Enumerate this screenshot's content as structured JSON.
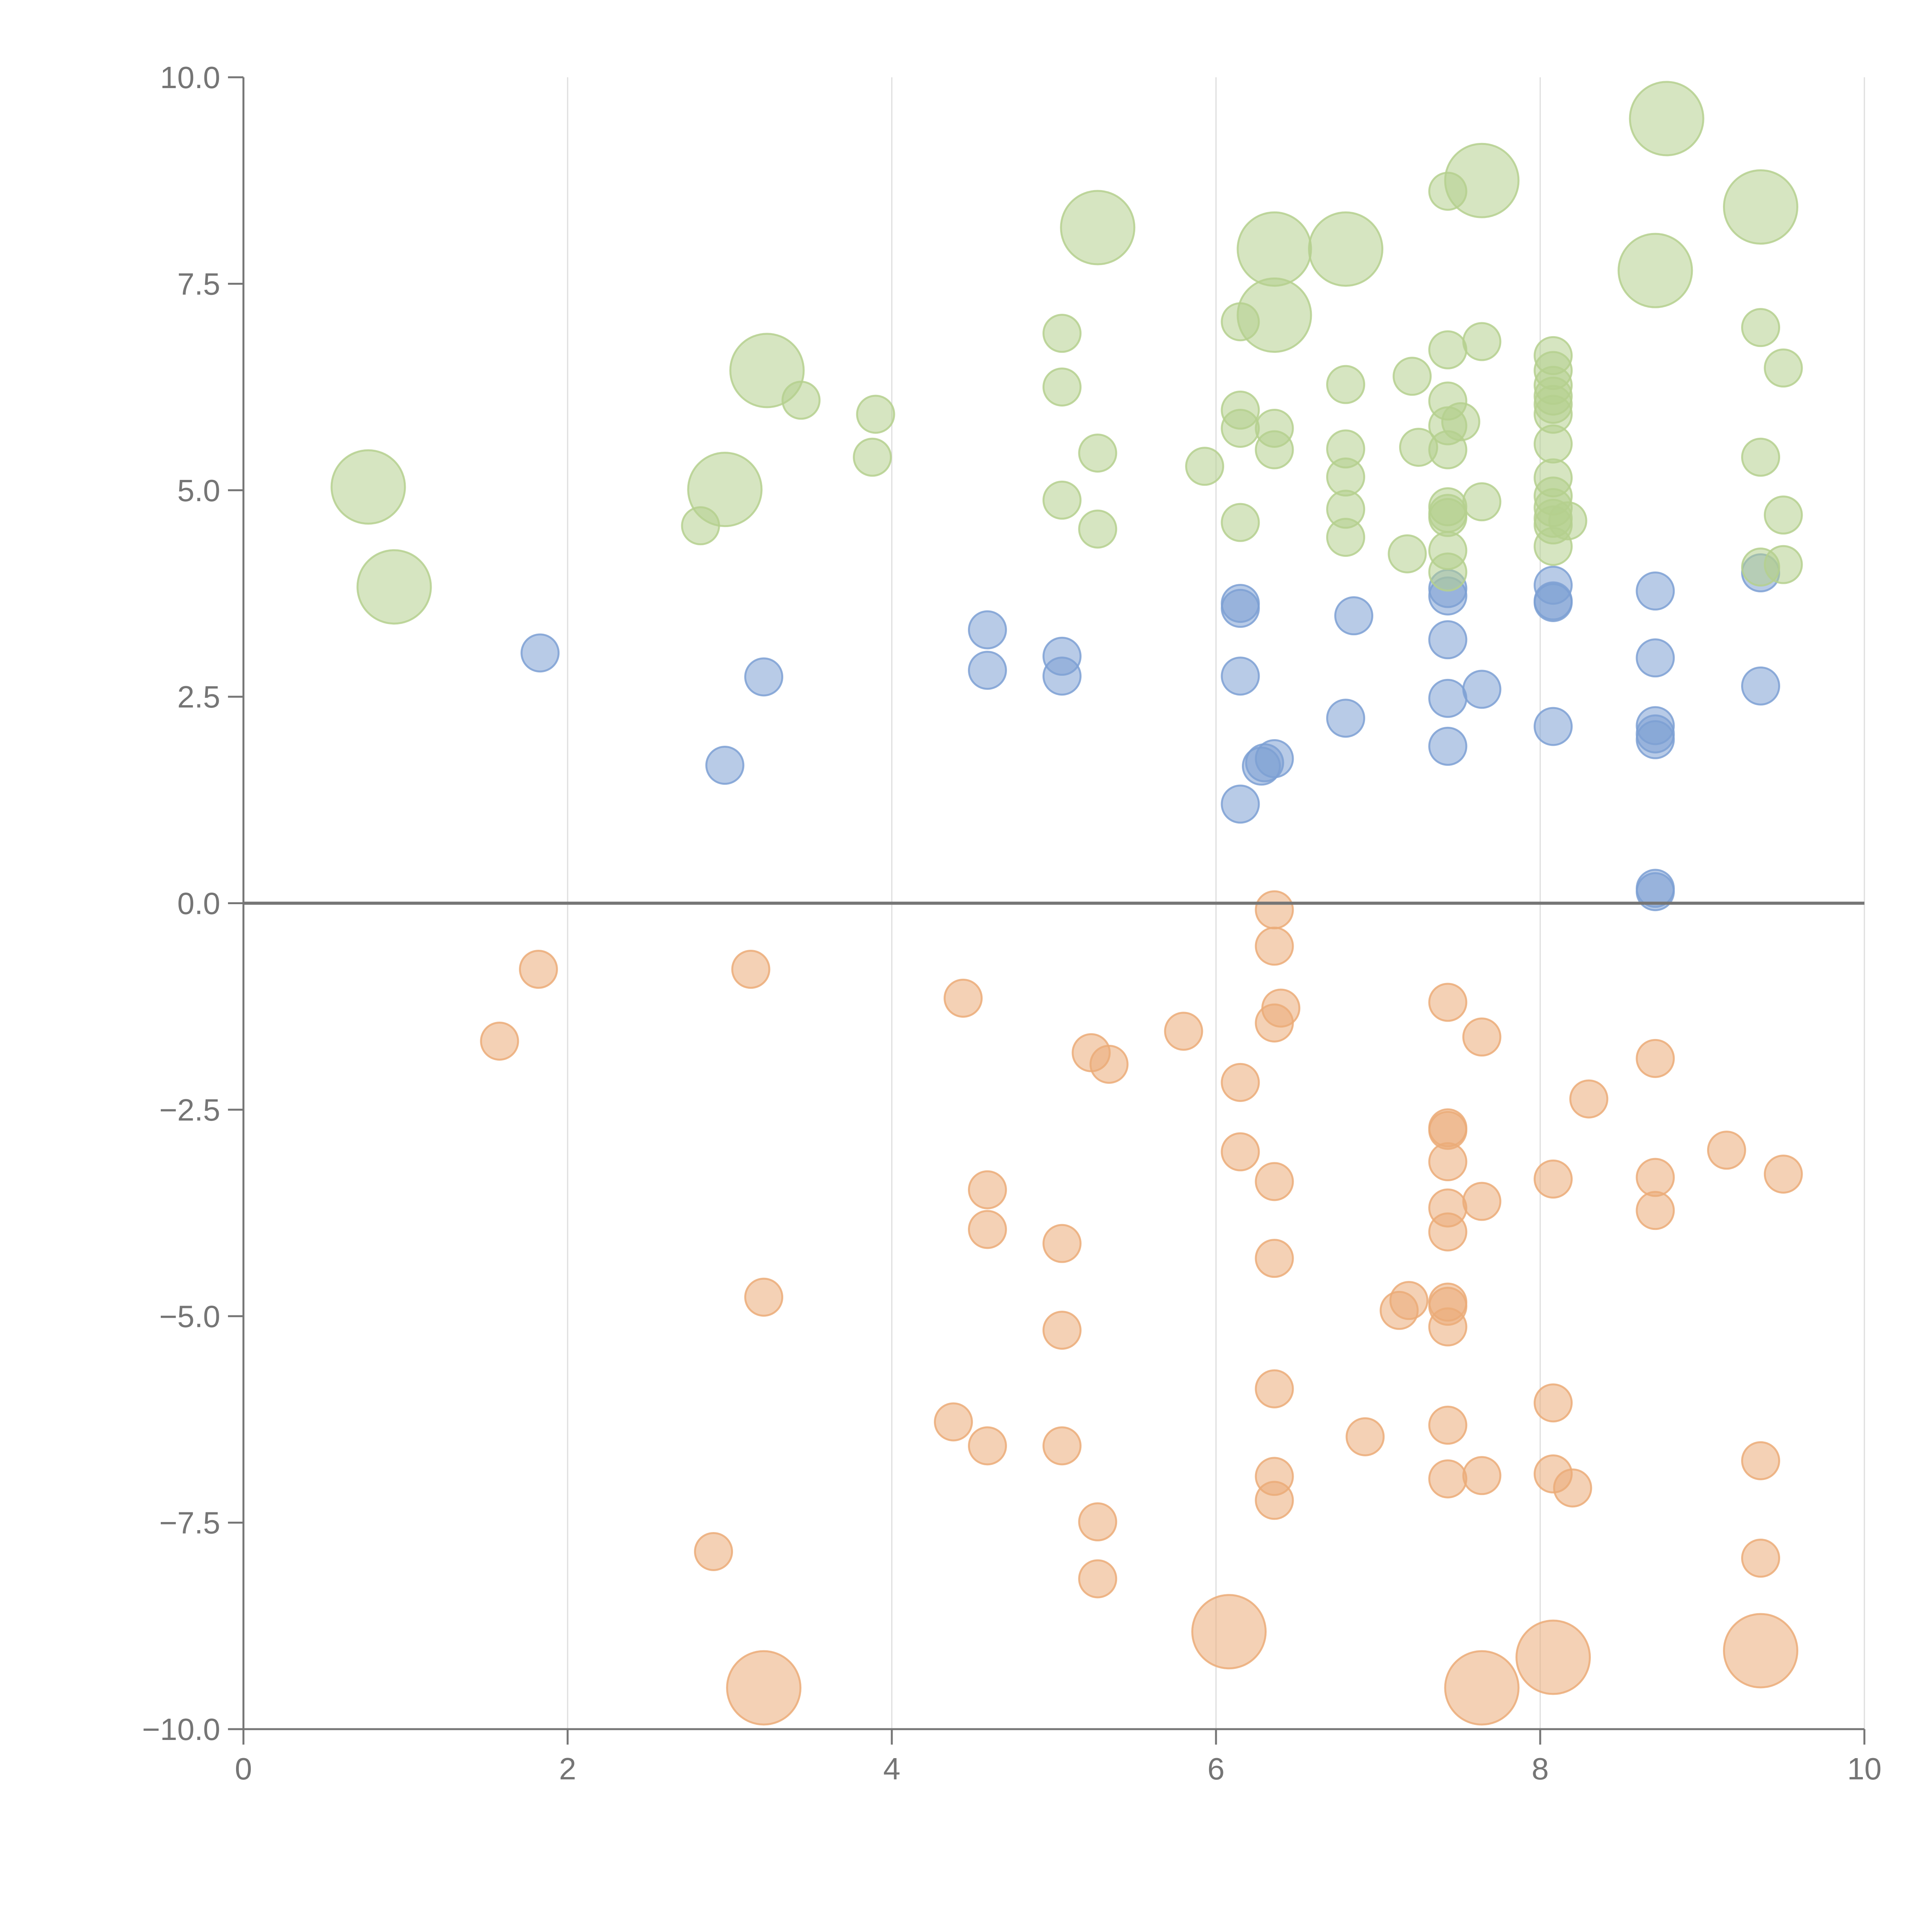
{
  "chart_data": {
    "type": "scatter",
    "title": "",
    "xlabel": "",
    "ylabel": "",
    "xlim": [
      0,
      10
    ],
    "ylim": [
      -10,
      10
    ],
    "x_ticks": [
      "0",
      "2",
      "4",
      "6",
      "8",
      "10"
    ],
    "y_ticks": [
      "−10.0",
      "−7.5",
      "−5.0",
      "−2.5",
      "0.0",
      "2.5",
      "5.0",
      "7.5",
      "10.0"
    ],
    "x_tick_values": [
      0,
      2,
      4,
      6,
      8,
      10
    ],
    "y_tick_values": [
      -10,
      -7.5,
      -5,
      -2.5,
      0,
      2.5,
      5,
      7.5,
      10
    ],
    "grid": "vertical",
    "zero_line": true,
    "colors": {
      "blue": "#7da0d3",
      "green": "#b5d08e",
      "orange": "#ebab78",
      "axis": "#757575",
      "grid": "#dddddd"
    },
    "series": [
      {
        "color_key": "blue",
        "points": [
          {
            "x": 1.83,
            "y": 3.03,
            "size": 1
          },
          {
            "x": 2.97,
            "y": 1.67,
            "size": 1
          },
          {
            "x": 3.21,
            "y": 2.74,
            "size": 1
          },
          {
            "x": 4.59,
            "y": 3.31,
            "size": 1
          },
          {
            "x": 4.59,
            "y": 2.82,
            "size": 1
          },
          {
            "x": 5.05,
            "y": 2.99,
            "size": 1
          },
          {
            "x": 5.05,
            "y": 2.75,
            "size": 1
          },
          {
            "x": 6.15,
            "y": 3.63,
            "size": 1
          },
          {
            "x": 6.15,
            "y": 3.57,
            "size": 1
          },
          {
            "x": 6.15,
            "y": 2.75,
            "size": 1
          },
          {
            "x": 6.15,
            "y": 1.2,
            "size": 1
          },
          {
            "x": 6.28,
            "y": 1.66,
            "size": 1
          },
          {
            "x": 6.3,
            "y": 1.7,
            "size": 1
          },
          {
            "x": 6.36,
            "y": 1.75,
            "size": 1
          },
          {
            "x": 6.8,
            "y": 2.24,
            "size": 1
          },
          {
            "x": 6.85,
            "y": 3.48,
            "size": 1
          },
          {
            "x": 7.43,
            "y": 3.81,
            "size": 1
          },
          {
            "x": 7.43,
            "y": 3.72,
            "size": 1
          },
          {
            "x": 7.43,
            "y": 3.19,
            "size": 1
          },
          {
            "x": 7.43,
            "y": 2.48,
            "size": 1
          },
          {
            "x": 7.43,
            "y": 1.9,
            "size": 1
          },
          {
            "x": 7.64,
            "y": 2.59,
            "size": 1
          },
          {
            "x": 8.08,
            "y": 3.85,
            "size": 1
          },
          {
            "x": 8.08,
            "y": 3.66,
            "size": 1
          },
          {
            "x": 8.08,
            "y": 3.64,
            "size": 1
          },
          {
            "x": 8.08,
            "y": 2.14,
            "size": 1
          },
          {
            "x": 8.71,
            "y": 3.78,
            "size": 1
          },
          {
            "x": 8.71,
            "y": 2.97,
            "size": 1
          },
          {
            "x": 8.71,
            "y": 2.15,
            "size": 1
          },
          {
            "x": 8.71,
            "y": 2.05,
            "size": 1
          },
          {
            "x": 8.71,
            "y": 1.98,
            "size": 1
          },
          {
            "x": 8.71,
            "y": 0.18,
            "size": 1
          },
          {
            "x": 8.71,
            "y": 0.14,
            "size": 1
          },
          {
            "x": 9.36,
            "y": 2.63,
            "size": 1
          },
          {
            "x": 9.36,
            "y": 4.0,
            "size": 1
          }
        ]
      },
      {
        "color_key": "green",
        "points": [
          {
            "x": 0.77,
            "y": 5.04,
            "size": 2
          },
          {
            "x": 0.93,
            "y": 3.83,
            "size": 2
          },
          {
            "x": 2.82,
            "y": 4.57,
            "size": 1
          },
          {
            "x": 2.97,
            "y": 5.01,
            "size": 2
          },
          {
            "x": 3.23,
            "y": 6.45,
            "size": 2
          },
          {
            "x": 3.44,
            "y": 6.09,
            "size": 1
          },
          {
            "x": 3.88,
            "y": 5.4,
            "size": 1
          },
          {
            "x": 3.9,
            "y": 5.92,
            "size": 1
          },
          {
            "x": 5.05,
            "y": 6.9,
            "size": 1
          },
          {
            "x": 5.05,
            "y": 6.25,
            "size": 1
          },
          {
            "x": 5.05,
            "y": 4.88,
            "size": 1
          },
          {
            "x": 5.27,
            "y": 8.18,
            "size": 2
          },
          {
            "x": 5.27,
            "y": 5.45,
            "size": 1
          },
          {
            "x": 5.27,
            "y": 4.53,
            "size": 1
          },
          {
            "x": 5.93,
            "y": 5.29,
            "size": 1
          },
          {
            "x": 6.15,
            "y": 7.04,
            "size": 1
          },
          {
            "x": 6.15,
            "y": 5.97,
            "size": 1
          },
          {
            "x": 6.15,
            "y": 5.75,
            "size": 1
          },
          {
            "x": 6.15,
            "y": 4.61,
            "size": 1
          },
          {
            "x": 6.36,
            "y": 7.92,
            "size": 2
          },
          {
            "x": 6.36,
            "y": 7.12,
            "size": 2
          },
          {
            "x": 6.36,
            "y": 5.75,
            "size": 1
          },
          {
            "x": 6.36,
            "y": 5.49,
            "size": 1
          },
          {
            "x": 6.8,
            "y": 7.92,
            "size": 2
          },
          {
            "x": 6.8,
            "y": 6.28,
            "size": 1
          },
          {
            "x": 6.8,
            "y": 5.5,
            "size": 1
          },
          {
            "x": 6.8,
            "y": 5.16,
            "size": 1
          },
          {
            "x": 6.8,
            "y": 4.77,
            "size": 1
          },
          {
            "x": 6.8,
            "y": 4.43,
            "size": 1
          },
          {
            "x": 7.21,
            "y": 6.38,
            "size": 1
          },
          {
            "x": 7.25,
            "y": 5.52,
            "size": 1
          },
          {
            "x": 7.18,
            "y": 4.23,
            "size": 1
          },
          {
            "x": 7.43,
            "y": 8.62,
            "size": 1
          },
          {
            "x": 7.43,
            "y": 6.7,
            "size": 1
          },
          {
            "x": 7.43,
            "y": 6.08,
            "size": 1
          },
          {
            "x": 7.43,
            "y": 5.78,
            "size": 1
          },
          {
            "x": 7.43,
            "y": 5.49,
            "size": 1
          },
          {
            "x": 7.43,
            "y": 4.8,
            "size": 1
          },
          {
            "x": 7.43,
            "y": 4.72,
            "size": 1
          },
          {
            "x": 7.43,
            "y": 4.67,
            "size": 1
          },
          {
            "x": 7.43,
            "y": 4.27,
            "size": 1
          },
          {
            "x": 7.43,
            "y": 4.01,
            "size": 1
          },
          {
            "x": 7.51,
            "y": 5.83,
            "size": 1
          },
          {
            "x": 7.64,
            "y": 8.75,
            "size": 2
          },
          {
            "x": 7.64,
            "y": 6.8,
            "size": 1
          },
          {
            "x": 7.64,
            "y": 4.86,
            "size": 1
          },
          {
            "x": 8.08,
            "y": 6.63,
            "size": 1
          },
          {
            "x": 8.08,
            "y": 6.45,
            "size": 1
          },
          {
            "x": 8.08,
            "y": 6.27,
            "size": 1
          },
          {
            "x": 8.08,
            "y": 6.14,
            "size": 1
          },
          {
            "x": 8.08,
            "y": 6.04,
            "size": 1
          },
          {
            "x": 8.08,
            "y": 5.92,
            "size": 1
          },
          {
            "x": 8.08,
            "y": 5.56,
            "size": 1
          },
          {
            "x": 8.08,
            "y": 5.15,
            "size": 1
          },
          {
            "x": 8.08,
            "y": 4.93,
            "size": 1
          },
          {
            "x": 8.08,
            "y": 4.79,
            "size": 1
          },
          {
            "x": 8.08,
            "y": 4.66,
            "size": 1
          },
          {
            "x": 8.08,
            "y": 4.58,
            "size": 1
          },
          {
            "x": 8.08,
            "y": 4.32,
            "size": 1
          },
          {
            "x": 8.17,
            "y": 4.63,
            "size": 1
          },
          {
            "x": 8.71,
            "y": 7.66,
            "size": 2
          },
          {
            "x": 8.78,
            "y": 9.5,
            "size": 2
          },
          {
            "x": 9.36,
            "y": 8.43,
            "size": 2
          },
          {
            "x": 9.36,
            "y": 6.97,
            "size": 1
          },
          {
            "x": 9.36,
            "y": 5.4,
            "size": 1
          },
          {
            "x": 9.36,
            "y": 4.07,
            "size": 1
          },
          {
            "x": 9.5,
            "y": 6.48,
            "size": 1
          },
          {
            "x": 9.5,
            "y": 4.7,
            "size": 1
          },
          {
            "x": 9.5,
            "y": 4.1,
            "size": 1
          }
        ]
      },
      {
        "color_key": "orange",
        "points": [
          {
            "x": 1.58,
            "y": -1.67,
            "size": 1
          },
          {
            "x": 1.82,
            "y": -0.8,
            "size": 1
          },
          {
            "x": 3.13,
            "y": -0.8,
            "size": 1
          },
          {
            "x": 2.9,
            "y": -7.85,
            "size": 1
          },
          {
            "x": 3.21,
            "y": -4.77,
            "size": 1
          },
          {
            "x": 3.21,
            "y": -9.5,
            "size": 2
          },
          {
            "x": 4.44,
            "y": -1.15,
            "size": 1
          },
          {
            "x": 4.38,
            "y": -6.28,
            "size": 1
          },
          {
            "x": 4.59,
            "y": -3.47,
            "size": 1
          },
          {
            "x": 4.59,
            "y": -3.95,
            "size": 1
          },
          {
            "x": 4.59,
            "y": -6.57,
            "size": 1
          },
          {
            "x": 5.05,
            "y": -4.12,
            "size": 1
          },
          {
            "x": 5.05,
            "y": -5.17,
            "size": 1
          },
          {
            "x": 5.05,
            "y": -6.57,
            "size": 1
          },
          {
            "x": 5.23,
            "y": -1.81,
            "size": 1
          },
          {
            "x": 5.34,
            "y": -1.95,
            "size": 1
          },
          {
            "x": 5.27,
            "y": -7.49,
            "size": 1
          },
          {
            "x": 5.27,
            "y": -8.18,
            "size": 1
          },
          {
            "x": 5.8,
            "y": -1.55,
            "size": 1
          },
          {
            "x": 6.08,
            "y": -8.82,
            "size": 2
          },
          {
            "x": 6.15,
            "y": -2.17,
            "size": 1
          },
          {
            "x": 6.15,
            "y": -3.01,
            "size": 1
          },
          {
            "x": 6.36,
            "y": -0.08,
            "size": 1
          },
          {
            "x": 6.36,
            "y": -0.52,
            "size": 1
          },
          {
            "x": 6.4,
            "y": -1.27,
            "size": 1
          },
          {
            "x": 6.36,
            "y": -1.45,
            "size": 1
          },
          {
            "x": 6.36,
            "y": -3.37,
            "size": 1
          },
          {
            "x": 6.36,
            "y": -4.3,
            "size": 1
          },
          {
            "x": 6.36,
            "y": -5.88,
            "size": 1
          },
          {
            "x": 6.36,
            "y": -6.94,
            "size": 1
          },
          {
            "x": 6.36,
            "y": -7.23,
            "size": 1
          },
          {
            "x": 6.92,
            "y": -6.46,
            "size": 1
          },
          {
            "x": 7.13,
            "y": -4.93,
            "size": 1
          },
          {
            "x": 7.19,
            "y": -4.81,
            "size": 1
          },
          {
            "x": 7.43,
            "y": -1.2,
            "size": 1
          },
          {
            "x": 7.43,
            "y": -2.72,
            "size": 1
          },
          {
            "x": 7.43,
            "y": -2.75,
            "size": 1
          },
          {
            "x": 7.43,
            "y": -3.13,
            "size": 1
          },
          {
            "x": 7.43,
            "y": -3.69,
            "size": 1
          },
          {
            "x": 7.43,
            "y": -3.98,
            "size": 1
          },
          {
            "x": 7.43,
            "y": -4.83,
            "size": 1
          },
          {
            "x": 7.43,
            "y": -4.88,
            "size": 1
          },
          {
            "x": 7.43,
            "y": -5.13,
            "size": 1
          },
          {
            "x": 7.43,
            "y": -6.32,
            "size": 1
          },
          {
            "x": 7.43,
            "y": -6.97,
            "size": 1
          },
          {
            "x": 7.64,
            "y": -1.62,
            "size": 1
          },
          {
            "x": 7.64,
            "y": -3.61,
            "size": 1
          },
          {
            "x": 7.64,
            "y": -6.93,
            "size": 1
          },
          {
            "x": 7.64,
            "y": -9.5,
            "size": 2
          },
          {
            "x": 8.08,
            "y": -3.34,
            "size": 1
          },
          {
            "x": 8.08,
            "y": -6.05,
            "size": 1
          },
          {
            "x": 8.08,
            "y": -6.91,
            "size": 1
          },
          {
            "x": 8.08,
            "y": -9.13,
            "size": 2
          },
          {
            "x": 8.2,
            "y": -7.08,
            "size": 1
          },
          {
            "x": 8.3,
            "y": -2.37,
            "size": 1
          },
          {
            "x": 8.71,
            "y": -1.88,
            "size": 1
          },
          {
            "x": 8.71,
            "y": -3.32,
            "size": 1
          },
          {
            "x": 8.71,
            "y": -3.72,
            "size": 1
          },
          {
            "x": 9.15,
            "y": -2.99,
            "size": 1
          },
          {
            "x": 9.36,
            "y": -6.75,
            "size": 1
          },
          {
            "x": 9.36,
            "y": -7.93,
            "size": 1
          },
          {
            "x": 9.36,
            "y": -9.05,
            "size": 2
          },
          {
            "x": 9.5,
            "y": -3.28,
            "size": 1
          }
        ]
      }
    ]
  }
}
